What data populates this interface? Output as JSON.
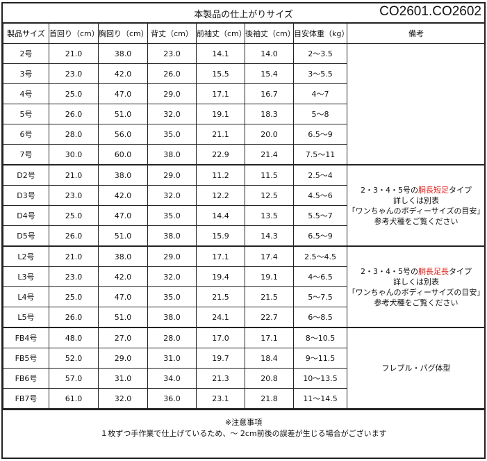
{
  "title": "本製品の仕上がりサイズ",
  "product_code": "CO2601.CO2602",
  "headers": [
    "製品サイズ",
    "首回り（cm）",
    "胸回り（cm）",
    "背丈（cm）",
    "前袖丈（cm）",
    "後袖丈（cm）",
    "目安体重（kg）",
    "備考"
  ],
  "rows": [
    [
      "2号",
      "21.0",
      "38.0",
      "23.0",
      "14.1",
      "14.0",
      "2～3.5"
    ],
    [
      "3号",
      "23.0",
      "42.0",
      "26.0",
      "15.5",
      "15.4",
      "3～5.5"
    ],
    [
      "4号",
      "25.0",
      "47.0",
      "29.0",
      "17.1",
      "16.7",
      "4～7"
    ],
    [
      "5号",
      "26.0",
      "51.0",
      "32.0",
      "19.1",
      "18.3",
      "5～8"
    ],
    [
      "6号",
      "28.0",
      "56.0",
      "35.0",
      "21.1",
      "20.0",
      "6.5～9"
    ],
    [
      "7号",
      "30.0",
      "60.0",
      "38.0",
      "22.9",
      "21.4",
      "7.5～11"
    ],
    [
      "D2号",
      "21.0",
      "38.0",
      "29.0",
      "11.2",
      "11.5",
      "2.5～4"
    ],
    [
      "D3号",
      "23.0",
      "42.0",
      "32.0",
      "12.2",
      "12.5",
      "4.5～6"
    ],
    [
      "D4号",
      "25.0",
      "47.0",
      "35.0",
      "14.4",
      "13.5",
      "5.5～7"
    ],
    [
      "D5号",
      "26.0",
      "51.0",
      "38.0",
      "15.9",
      "14.3",
      "6.5～9"
    ],
    [
      "L2号",
      "21.0",
      "38.0",
      "29.0",
      "17.1",
      "17.4",
      "2.5～4.5"
    ],
    [
      "L3号",
      "23.0",
      "42.0",
      "32.0",
      "19.4",
      "19.1",
      "4～6.5"
    ],
    [
      "L4号",
      "25.0",
      "47.0",
      "35.0",
      "21.5",
      "21.5",
      "5～7.5"
    ],
    [
      "L5号",
      "26.0",
      "51.0",
      "38.0",
      "24.1",
      "22.7",
      "6～8.5"
    ],
    [
      "FB4号",
      "48.0",
      "27.0",
      "28.0",
      "17.0",
      "17.1",
      "8～10.5"
    ],
    [
      "FB5号",
      "52.0",
      "29.0",
      "31.0",
      "19.7",
      "18.4",
      "9～11.5"
    ],
    [
      "FB6号",
      "57.0",
      "31.0",
      "34.0",
      "21.3",
      "20.8",
      "10～13.5"
    ],
    [
      "FB7号",
      "61.0",
      "32.0",
      "36.0",
      "23.1",
      "21.8",
      "11～14.5"
    ]
  ],
  "remarks": {
    "d": {
      "pre": "2・3・4・5号の",
      "red": "胴長短足",
      "post": "タイプ",
      "line2": "詳しくは別表",
      "line3": "「ワンちゃんのボディーサイズの目安」",
      "line4": "参考犬種をご覧ください"
    },
    "l": {
      "pre": "2・3・4・5号の",
      "red": "胴長足長",
      "post": "タイプ",
      "line2": "詳しくは別表",
      "line3": "「ワンちゃんのボディーサイズの目安」",
      "line4": "参考犬種をご覧ください"
    },
    "fb": "フレブル・パグ体型"
  },
  "colors": {
    "highlight": "#e0201a"
  },
  "footer": {
    "line1": "※注意事項",
    "line2": "１枚ずつ手作業で仕上げているため、～ 2cm前後の誤差が生じる場合がございます"
  }
}
